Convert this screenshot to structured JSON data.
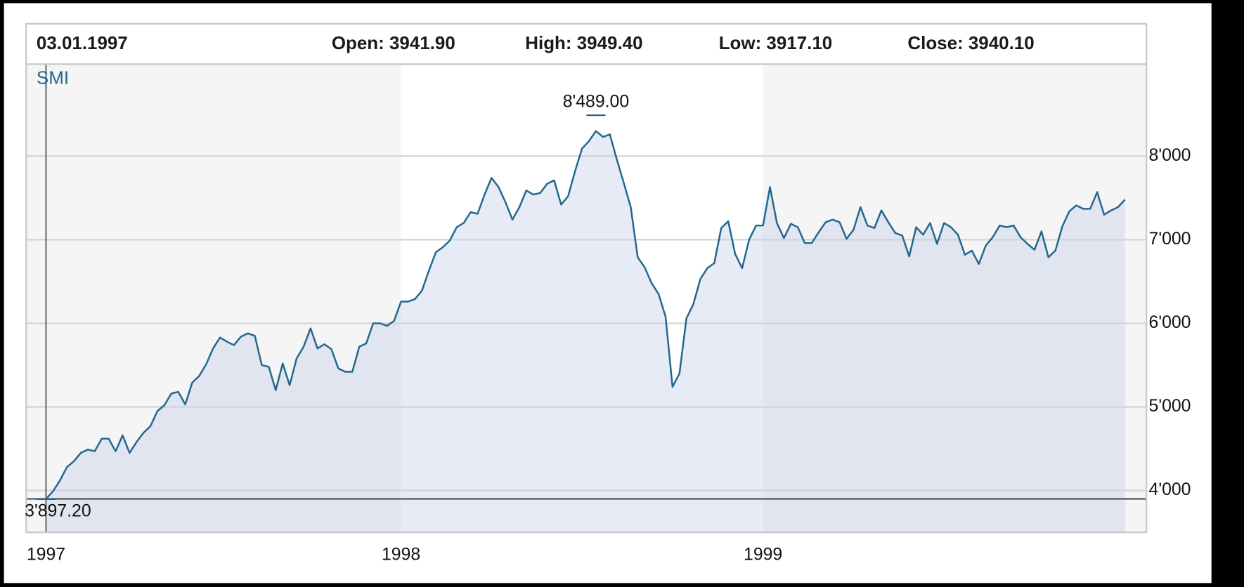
{
  "header": {
    "date": "03.01.1997",
    "open": "Open: 3941.90",
    "high": "High: 3949.40",
    "low": "Low: 3917.10",
    "close": "Close: 3940.10"
  },
  "chart_data": {
    "type": "line",
    "categories": [
      "1997",
      null,
      null,
      null,
      null,
      null,
      null,
      null,
      null,
      null,
      null,
      null,
      null,
      null,
      null,
      null,
      null,
      null,
      null,
      null,
      null,
      null,
      null,
      null,
      null,
      null,
      null,
      null,
      null,
      null,
      null,
      null,
      null,
      null,
      null,
      null,
      null,
      null,
      null,
      null,
      null,
      null,
      null,
      null,
      null,
      null,
      null,
      null,
      null,
      null,
      null,
      "1998",
      null,
      null,
      null,
      null,
      null,
      null,
      null,
      null,
      null,
      null,
      null,
      null,
      null,
      null,
      null,
      null,
      null,
      null,
      null,
      null,
      null,
      null,
      null,
      null,
      null,
      null,
      null,
      null,
      null,
      null,
      null,
      null,
      null,
      null,
      null,
      null,
      null,
      null,
      null,
      null,
      null,
      null,
      null,
      null,
      null,
      null,
      null,
      null,
      null,
      null,
      null,
      "1999",
      null,
      null,
      null,
      null,
      null,
      null,
      null,
      null,
      null,
      null,
      null,
      null,
      null,
      null,
      null,
      null,
      null,
      null,
      null,
      null,
      null,
      null,
      null,
      null,
      null,
      null,
      null,
      null,
      null,
      null,
      null,
      null,
      null,
      null,
      null,
      null,
      null,
      null,
      null,
      null,
      null,
      null,
      null,
      null,
      null,
      null,
      null,
      null,
      null,
      null,
      null,
      null
    ],
    "series": [
      {
        "name": "SMI",
        "color": "#22688c",
        "values": [
          3900,
          3990,
          4120,
          4280,
          4350,
          4450,
          4490,
          4470,
          4620,
          4620,
          4470,
          4660,
          4450,
          4580,
          4690,
          4770,
          4950,
          5020,
          5160,
          5180,
          5030,
          5290,
          5370,
          5510,
          5700,
          5830,
          5780,
          5740,
          5840,
          5880,
          5850,
          5500,
          5480,
          5200,
          5520,
          5260,
          5580,
          5720,
          5940,
          5700,
          5750,
          5690,
          5460,
          5420,
          5420,
          5720,
          5760,
          6000,
          6000,
          5970,
          6030,
          6260,
          6260,
          6290,
          6390,
          6630,
          6850,
          6910,
          6990,
          7150,
          7200,
          7330,
          7310,
          7540,
          7740,
          7630,
          7450,
          7240,
          7390,
          7590,
          7540,
          7560,
          7670,
          7710,
          7420,
          7520,
          7820,
          8090,
          8180,
          8300,
          8230,
          8260,
          7960,
          7680,
          7390,
          6790,
          6670,
          6480,
          6350,
          6080,
          5240,
          5400,
          6060,
          6230,
          6530,
          6660,
          6720,
          7140,
          7220,
          6830,
          6660,
          7000,
          7170,
          7170,
          7630,
          7200,
          7020,
          7190,
          7150,
          6960,
          6960,
          7090,
          7210,
          7240,
          7210,
          7010,
          7120,
          7390,
          7170,
          7140,
          7350,
          7210,
          7080,
          7050,
          6800,
          7150,
          7060,
          7200,
          6950,
          7200,
          7150,
          7060,
          6820,
          6870,
          6710,
          6930,
          7030,
          7170,
          7150,
          7170,
          7030,
          6950,
          6880,
          7100,
          6790,
          6870,
          7160,
          7340,
          7410,
          7370,
          7370,
          7570,
          7300,
          7350,
          7390,
          7480
        ]
      }
    ],
    "annotations": [
      {
        "label": "8'489.00",
        "value": 8489
      },
      {
        "label": "3'897.20",
        "value": 3897.2
      }
    ],
    "ylim": [
      3500,
      9100
    ],
    "yticks": [
      {
        "value": 4000,
        "label": "4'000"
      },
      {
        "value": 5000,
        "label": "5'000"
      },
      {
        "value": 6000,
        "label": "6'000"
      },
      {
        "value": 7000,
        "label": "7'000"
      },
      {
        "value": 8000,
        "label": "8'000"
      }
    ],
    "grid": true,
    "fill": "#c9d2ea"
  }
}
